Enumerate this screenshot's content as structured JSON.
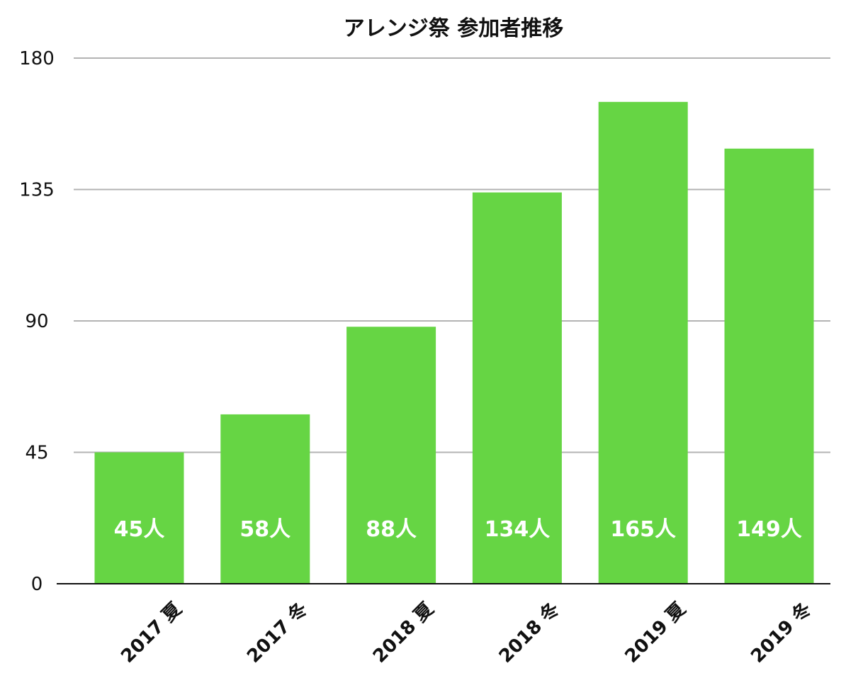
{
  "chart_data": {
    "type": "bar",
    "title": "アレンジ祭 参加者推移",
    "xlabel": "",
    "ylabel": "",
    "categories": [
      "2017 夏",
      "2017 冬",
      "2018 夏",
      "2018 冬",
      "2019 夏",
      "2019 冬"
    ],
    "values": [
      45,
      58,
      88,
      134,
      165,
      149
    ],
    "data_labels": [
      "45人",
      "58人",
      "88人",
      "134人",
      "165人",
      "149人"
    ],
    "ylim": [
      0,
      180
    ],
    "yticks": [
      "0",
      "45",
      "90",
      "135",
      "180"
    ],
    "grid": true,
    "legend": "none",
    "colors": {
      "bar": "#66d544",
      "grid": "#b3b3b3",
      "axis": "#111111",
      "data_label": "#ffffff"
    }
  }
}
